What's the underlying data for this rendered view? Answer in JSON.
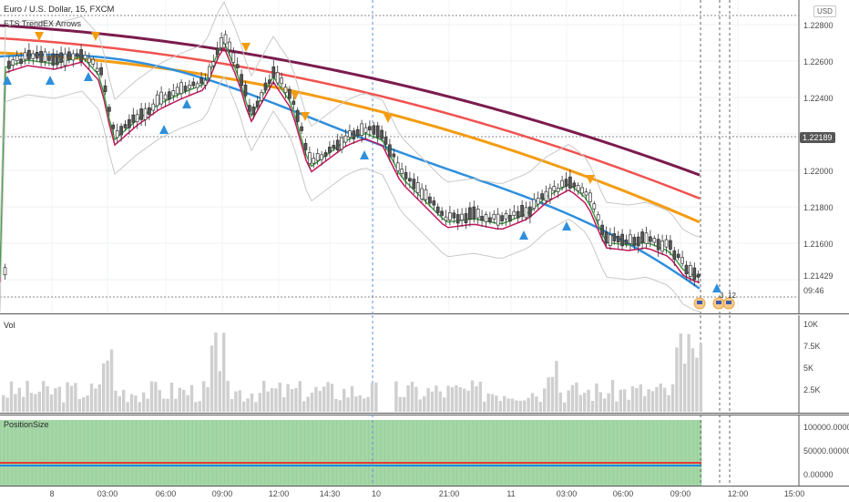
{
  "header": {
    "symbol_title": "Euro / U.S. Dollar, 15, FXCM",
    "indicator_title": "ETS TrendEX Arrows",
    "currency_button": "USD"
  },
  "price_axis": {
    "labels": [
      "1.22800",
      "1.22600",
      "1.22400",
      "1.22000",
      "1.21800",
      "1.21600",
      "1.21429",
      "09:46"
    ],
    "current_badge": "1.22189",
    "countdown_value": "1.21429",
    "countdown_time": "09:46"
  },
  "volume_pane": {
    "title": "Vol",
    "axis_labels": [
      "10K",
      "7.5K",
      "5K",
      "2.5K"
    ]
  },
  "position_pane": {
    "title": "PositionSize",
    "axis_labels": [
      "100000.00000",
      "50000.00000",
      "0.00000"
    ]
  },
  "time_axis": {
    "labels": [
      "8",
      "03:00",
      "06:00",
      "09:00",
      "12:00",
      "14:30",
      "10",
      "21:00",
      "11",
      "03:00",
      "06:00",
      "09:00",
      "12:00",
      "15:00"
    ]
  },
  "events": {
    "count_label": "3",
    "count_label_2": "12"
  },
  "colors": {
    "ema_maroon": "#7b1b4e",
    "ema_red": "#ef5350",
    "ema_orange": "#f39c12",
    "ema_blue": "#2f8fdd",
    "ema_magenta": "#c2185b",
    "ema_green": "#43a047",
    "band": "#c8c8c8",
    "volume_bar": "#cfcfcf",
    "position_fill": "#a5d6a7"
  }
}
